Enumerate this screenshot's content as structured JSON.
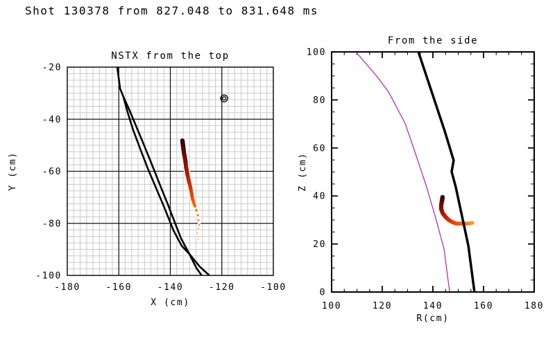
{
  "title": "Shot 130378 from 827.048 to 831.648 ms",
  "chart_data": [
    {
      "type": "scatter",
      "name": "top-view",
      "title": "NSTX from the top",
      "xlabel": "X (cm)",
      "ylabel": "Y (cm)",
      "xlim": [
        -180,
        -100
      ],
      "ylim": [
        -100,
        -20
      ],
      "xticks": [
        -180,
        -160,
        -140,
        -120,
        -100
      ],
      "yticks": [
        -100,
        -80,
        -60,
        -40,
        -20
      ],
      "grid": {
        "minor_step": 2.5,
        "major_step": 20,
        "minor_color": "#c9c9c9",
        "major_color": "#1a1a1a"
      },
      "marker": {
        "kind": "double-circle",
        "x": -119.1,
        "y": -32,
        "outer_r": 5,
        "inner_r": 2.4,
        "color": "#000000"
      },
      "walls": [
        {
          "color": "#000000",
          "width": 2.6,
          "above_trajectory": false,
          "points": [
            [
              -160.6,
              -20
            ],
            [
              -159.5,
              -28.2
            ],
            [
              -158.2,
              -31.4
            ],
            [
              -156.6,
              -37.3
            ],
            [
              -154.4,
              -44.2
            ],
            [
              -151.7,
              -51.4
            ],
            [
              -148.8,
              -58.8
            ],
            [
              -145.5,
              -66.5
            ],
            [
              -142.3,
              -74.0
            ],
            [
              -138.8,
              -82.7
            ],
            [
              -135.6,
              -88.6
            ],
            [
              -132.6,
              -91.8
            ],
            [
              -128.6,
              -96.6
            ],
            [
              -124.5,
              -100.3
            ]
          ]
        },
        {
          "color": "#000000",
          "width": 2.6,
          "above_trajectory": false,
          "points": [
            [
              -158.2,
              -31.4
            ],
            [
              -156.0,
              -36.2
            ],
            [
              -153.3,
              -42.6
            ],
            [
              -150.4,
              -49.5
            ],
            [
              -147.1,
              -57.5
            ],
            [
              -143.9,
              -65.5
            ],
            [
              -140.7,
              -73.4
            ],
            [
              -138.2,
              -79.8
            ],
            [
              -135.8,
              -85.9
            ],
            [
              -132.6,
              -91.8
            ],
            [
              -129.9,
              -97.1
            ],
            [
              -127.5,
              -100.5
            ]
          ]
        }
      ],
      "trajectory": {
        "halo": "#ffffff",
        "points": [
          {
            "x": -135.3,
            "y": -48.2,
            "s": 3.2,
            "c": "#2b0505"
          },
          {
            "x": -135.0,
            "y": -50.6,
            "s": 3.2,
            "c": "#450707"
          },
          {
            "x": -134.7,
            "y": -53.0,
            "s": 3.1,
            "c": "#5e0a06"
          },
          {
            "x": -134.2,
            "y": -55.6,
            "s": 3.1,
            "c": "#770d05"
          },
          {
            "x": -133.9,
            "y": -58.3,
            "s": 3.0,
            "c": "#901104"
          },
          {
            "x": -133.4,
            "y": -60.9,
            "s": 2.9,
            "c": "#a81703"
          },
          {
            "x": -132.9,
            "y": -63.3,
            "s": 2.8,
            "c": "#bc2102"
          },
          {
            "x": -132.3,
            "y": -65.7,
            "s": 2.7,
            "c": "#cf2e01"
          },
          {
            "x": -131.8,
            "y": -68.1,
            "s": 2.6,
            "c": "#de3d02"
          },
          {
            "x": -131.5,
            "y": -70.0,
            "s": 2.5,
            "c": "#e94d04"
          },
          {
            "x": -131.0,
            "y": -71.8,
            "s": 2.4,
            "c": "#f05e08"
          },
          {
            "x": -130.4,
            "y": -73.4,
            "s": 2.2,
            "c": "#f46d10"
          },
          {
            "x": -129.9,
            "y": -75.0,
            "s": 2.0,
            "c": "#f67b1a"
          },
          {
            "x": -129.3,
            "y": -76.9,
            "s": 1.8,
            "c": "#f78726"
          },
          {
            "x": -129.1,
            "y": -78.8,
            "s": 1.6,
            "c": "#f89332"
          },
          {
            "x": -128.8,
            "y": -80.6,
            "s": 1.5,
            "c": "#f89d40"
          },
          {
            "x": -129.1,
            "y": -82.2,
            "s": 1.3,
            "c": "#f8a64e"
          },
          {
            "x": -129.6,
            "y": -83.8,
            "s": 1.2,
            "c": "#f7ae5c"
          },
          {
            "x": -129.3,
            "y": -85.1,
            "s": 1.1,
            "c": "#f6b569"
          },
          {
            "x": -129.1,
            "y": -86.2,
            "s": 1.0,
            "c": "#f5ba74"
          }
        ]
      }
    },
    {
      "type": "scatter",
      "name": "side-view",
      "title": "From the side",
      "xlabel": "R(cm)",
      "ylabel": "Z (cm)",
      "xlim": [
        100,
        180
      ],
      "ylim": [
        0,
        100
      ],
      "xticks": [
        100,
        120,
        140,
        160,
        180
      ],
      "yticks": [
        0,
        20,
        40,
        60,
        80,
        100
      ],
      "minor_tick_step": 5,
      "walls": [
        {
          "color": "#aa22aa",
          "width": 1.2,
          "above_trajectory": false,
          "points": [
            [
              109.6,
              100
            ],
            [
              117.8,
              89.9
            ],
            [
              122.5,
              83.3
            ],
            [
              129.0,
              70.3
            ],
            [
              133.4,
              56.8
            ],
            [
              137.5,
              43.8
            ],
            [
              141.1,
              30.8
            ],
            [
              144.4,
              17.9
            ],
            [
              146.6,
              0
            ]
          ]
        },
        {
          "color": "#000000",
          "width": 3.5,
          "above_trajectory": true,
          "points": [
            [
              134.0,
              100.9
            ],
            [
              144.7,
              66.9
            ],
            [
              148.2,
              54.8
            ],
            [
              147.4,
              50.1
            ],
            [
              149.0,
              43.8
            ],
            [
              154.0,
              19.3
            ],
            [
              156.4,
              0
            ]
          ]
        }
      ],
      "trajectory": {
        "halo": "#ffffff",
        "points": [
          {
            "x": 143.8,
            "y": 39.5,
            "s": 3.2,
            "c": "#2b0505"
          },
          {
            "x": 143.6,
            "y": 38.0,
            "s": 3.2,
            "c": "#4a0807"
          },
          {
            "x": 143.3,
            "y": 36.3,
            "s": 3.1,
            "c": "#660b06"
          },
          {
            "x": 143.3,
            "y": 34.6,
            "s": 3.1,
            "c": "#821004"
          },
          {
            "x": 143.8,
            "y": 32.9,
            "s": 3.0,
            "c": "#9d1503"
          },
          {
            "x": 144.9,
            "y": 31.4,
            "s": 3.0,
            "c": "#b51e02"
          },
          {
            "x": 146.3,
            "y": 30.0,
            "s": 2.9,
            "c": "#ca2b01"
          },
          {
            "x": 147.7,
            "y": 29.1,
            "s": 2.9,
            "c": "#dc3a02"
          },
          {
            "x": 149.3,
            "y": 28.5,
            "s": 2.8,
            "c": "#e84c05"
          },
          {
            "x": 151.0,
            "y": 28.5,
            "s": 2.8,
            "c": "#f05d0a"
          },
          {
            "x": 152.6,
            "y": 28.5,
            "s": 2.7,
            "c": "#f47113"
          },
          {
            "x": 154.2,
            "y": 28.5,
            "s": 2.7,
            "c": "#f68420"
          },
          {
            "x": 155.6,
            "y": 28.8,
            "s": 2.6,
            "c": "#f7952f"
          }
        ]
      }
    }
  ]
}
